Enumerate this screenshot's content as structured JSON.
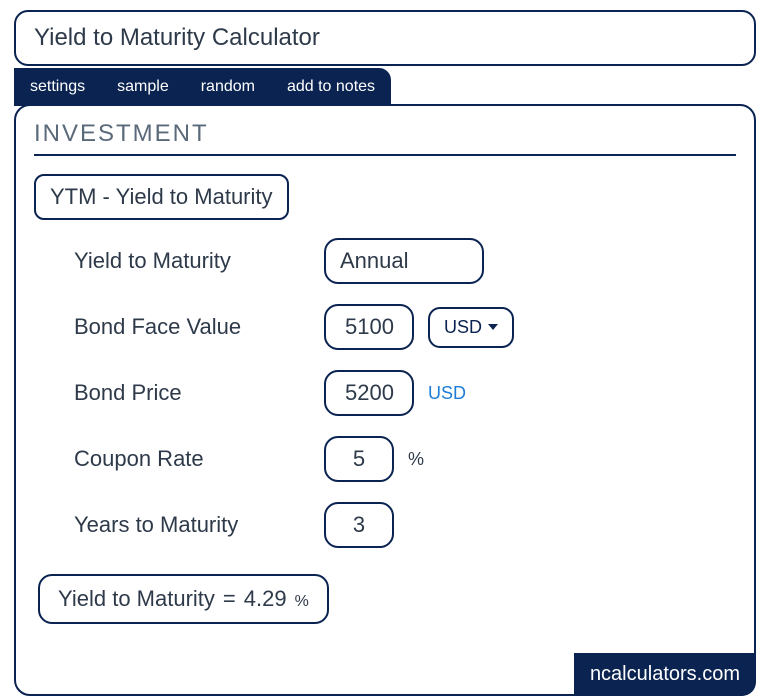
{
  "colors": {
    "brand": "#0a2351",
    "text": "#2e3a4a",
    "muted": "#5a6a7a",
    "link": "#1e7dd6",
    "bg": "#ffffff"
  },
  "title": "Yield to Maturity Calculator",
  "tabs": {
    "settings": "settings",
    "sample": "sample",
    "random": "random",
    "add_to_notes": "add to notes"
  },
  "section_title": "INVESTMENT",
  "mode_label": "YTM - Yield to Maturity",
  "fields": {
    "ytm": {
      "label": "Yield to Maturity",
      "value": "Annual"
    },
    "face_value": {
      "label": "Bond Face Value",
      "value": "5100",
      "currency": "USD"
    },
    "price": {
      "label": "Bond Price",
      "value": "5200",
      "currency": "USD"
    },
    "coupon": {
      "label": "Coupon Rate",
      "value": "5",
      "unit": "%"
    },
    "years": {
      "label": "Years to Maturity",
      "value": "3"
    }
  },
  "result": {
    "label": "Yield to Maturity",
    "equals": "=",
    "value": "4.29",
    "unit": "%"
  },
  "watermark": "ncalculators.com"
}
